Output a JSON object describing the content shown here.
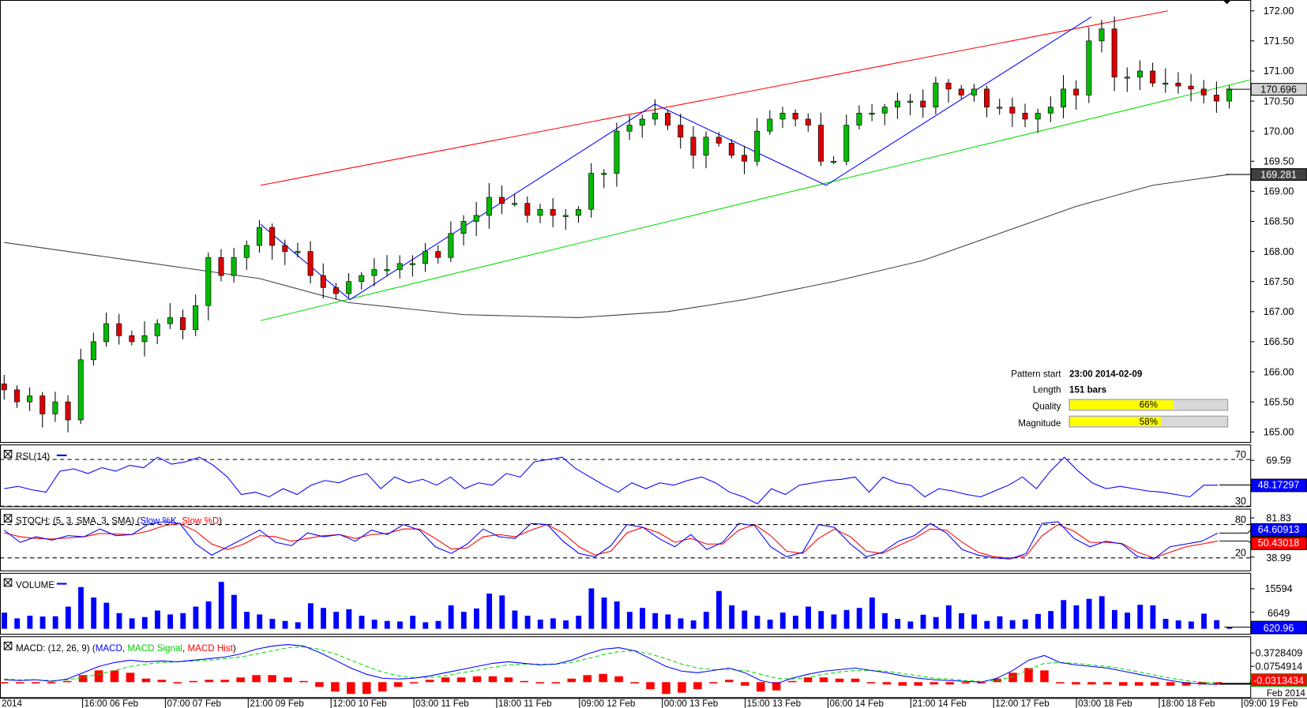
{
  "chart_data": {
    "type": "candlestick",
    "price_axis": {
      "ticks": [
        "172.00",
        "171.50",
        "171.00",
        "170.50",
        "170.00",
        "169.50",
        "169.00",
        "168.50",
        "168.00",
        "167.50",
        "167.00",
        "166.50",
        "166.00",
        "165.50",
        "165.00"
      ],
      "ylim": [
        165.0,
        172.0
      ]
    },
    "current_price_label": "170.696",
    "ma_price_label": "169.281",
    "closes": [
      165.7,
      165.5,
      165.6,
      165.3,
      165.5,
      165.2,
      166.2,
      166.5,
      166.8,
      166.6,
      166.5,
      166.6,
      166.8,
      166.9,
      166.7,
      167.1,
      167.9,
      167.6,
      167.9,
      168.1,
      168.4,
      168.1,
      168.0,
      168.0,
      167.6,
      167.4,
      167.3,
      167.5,
      167.6,
      167.7,
      167.7,
      167.8,
      167.8,
      168.0,
      167.9,
      168.3,
      168.5,
      168.6,
      168.9,
      168.8,
      168.8,
      168.6,
      168.7,
      168.6,
      168.6,
      168.7,
      169.3,
      169.3,
      170.0,
      170.1,
      170.2,
      170.3,
      170.1,
      169.9,
      169.6,
      169.9,
      169.8,
      169.6,
      169.5,
      170.0,
      170.2,
      170.3,
      170.2,
      170.1,
      169.5,
      169.5,
      170.1,
      170.3,
      170.3,
      170.4,
      170.5,
      170.5,
      170.4,
      170.8,
      170.7,
      170.6,
      170.7,
      170.4,
      170.4,
      170.3,
      170.2,
      170.3,
      170.4,
      170.7,
      170.6,
      171.5,
      171.7,
      170.9,
      170.9,
      171.0,
      170.8,
      170.8,
      170.75,
      170.7,
      170.6,
      170.5,
      170.7
    ],
    "moving_average": [
      [
        0,
        168.15
      ],
      [
        10,
        167.85
      ],
      [
        20,
        167.55
      ],
      [
        27,
        167.15
      ],
      [
        36,
        166.95
      ],
      [
        45,
        166.9
      ],
      [
        52,
        167.0
      ],
      [
        58,
        167.2
      ],
      [
        65,
        167.5
      ],
      [
        72,
        167.85
      ],
      [
        78,
        168.3
      ],
      [
        84,
        168.75
      ],
      [
        90,
        169.1
      ],
      [
        96,
        169.28
      ]
    ],
    "channel_upper": [
      [
        20.1,
        169.1
      ],
      [
        91.2,
        172.0
      ]
    ],
    "channel_lower": [
      [
        20.1,
        166.85
      ],
      [
        97.6,
        170.85
      ]
    ],
    "pattern_zigzag": [
      [
        20.1,
        168.45
      ],
      [
        27.1,
        167.2
      ],
      [
        51,
        170.45
      ],
      [
        64.4,
        169.1
      ],
      [
        85.2,
        171.9
      ]
    ],
    "x_tick_labels": [
      "2014",
      "16:00 06 Feb",
      "07:00 07 Feb",
      "21:00 09 Feb",
      "12:00 10 Feb",
      "03:00 11 Feb",
      "18:00 11 Feb",
      "09:00 12 Feb",
      "00:00 13 Feb",
      "15:00 13 Feb",
      "06:00 14 Feb",
      "21:00 14 Feb",
      "12:00 17 Feb",
      "03:00 18 Feb",
      "18:00 18 Feb",
      "09:00 19 Feb",
      "Feb 2014"
    ],
    "pattern_info": {
      "pattern_start_label": "Pattern start",
      "pattern_start_value": "23:00 2014-02-09",
      "length_label": "Length",
      "length_value": "151 bars",
      "quality_label": "Quality",
      "quality_percent": 66,
      "quality_text": "66%",
      "magnitude_label": "Magnitude",
      "magnitude_percent": 58,
      "magnitude_text": "58%"
    },
    "rsi": {
      "title": "RSI (14)",
      "levels": [
        "70",
        "30"
      ],
      "axis_label": "69.59",
      "current_label": "48.17297",
      "values": [
        45,
        47,
        44,
        42,
        60,
        62,
        58,
        63,
        60,
        65,
        63,
        72,
        66,
        68,
        72,
        65,
        55,
        40,
        42,
        38,
        45,
        40,
        48,
        52,
        50,
        55,
        58,
        45,
        55,
        50,
        53,
        48,
        55,
        45,
        50,
        48,
        58,
        55,
        68,
        70,
        72,
        62,
        55,
        48,
        42,
        50,
        45,
        50,
        48,
        52,
        55,
        50,
        42,
        38,
        32,
        45,
        40,
        48,
        50,
        52,
        53,
        55,
        42,
        55,
        50,
        48,
        38,
        45,
        43,
        40,
        38,
        43,
        48,
        55,
        45,
        60,
        72,
        60,
        50,
        45,
        47,
        45,
        43,
        42,
        40,
        38,
        48,
        48
      ]
    },
    "stoch": {
      "title": "STOCH: (5, 3, SMA, 3, SMA)",
      "k_label": "Slow %K",
      "d_label": "Slow %D",
      "levels": [
        "80",
        "20"
      ],
      "axis_labels": [
        "81.83",
        "38.99"
      ],
      "k_current": "64.60913",
      "d_current": "50.43018",
      "k": [
        70,
        48,
        58,
        52,
        60,
        58,
        72,
        60,
        62,
        80,
        85,
        82,
        45,
        25,
        40,
        55,
        70,
        48,
        42,
        65,
        58,
        62,
        50,
        70,
        62,
        80,
        70,
        40,
        28,
        45,
        72,
        58,
        55,
        82,
        80,
        50,
        28,
        22,
        42,
        80,
        75,
        55,
        40,
        62,
        35,
        48,
        82,
        78,
        40,
        22,
        30,
        80,
        75,
        45,
        22,
        30,
        50,
        60,
        82,
        65,
        35,
        25,
        20,
        18,
        28,
        82,
        85,
        55,
        40,
        50,
        45,
        22,
        18,
        40,
        45,
        50,
        64.6
      ],
      "d": [
        65,
        58,
        55,
        54,
        56,
        58,
        64,
        63,
        62,
        68,
        78,
        82,
        68,
        45,
        35,
        45,
        60,
        58,
        50,
        55,
        60,
        62,
        55,
        62,
        64,
        72,
        72,
        55,
        36,
        38,
        58,
        62,
        58,
        70,
        80,
        65,
        40,
        25,
        32,
        65,
        75,
        65,
        48,
        55,
        45,
        45,
        70,
        80,
        60,
        32,
        28,
        55,
        72,
        58,
        32,
        28,
        42,
        55,
        72,
        70,
        48,
        30,
        22,
        20,
        24,
        60,
        80,
        68,
        48,
        48,
        46,
        30,
        20,
        30,
        40,
        45,
        50.4
      ]
    },
    "volume": {
      "title": "VOLUME",
      "axis_labels": [
        "15594",
        "6649"
      ],
      "current_label": "620.96",
      "values": [
        6200,
        4000,
        5000,
        4700,
        4800,
        8500,
        16000,
        12000,
        10000,
        6000,
        4000,
        4500,
        7000,
        5500,
        6000,
        8500,
        10500,
        18000,
        13000,
        6500,
        5500,
        3800,
        3000,
        2500,
        9800,
        8000,
        6500,
        7500,
        5000,
        3500,
        3000,
        2800,
        5000,
        2500,
        3000,
        9000,
        6500,
        7800,
        13500,
        12800,
        7000,
        5000,
        3500,
        4000,
        3200,
        5000,
        15500,
        12000,
        10500,
        6500,
        8000,
        6000,
        5500,
        4000,
        3200,
        6500,
        14500,
        9000,
        7000,
        5000,
        3500,
        6200,
        5000,
        8500,
        6800,
        5500,
        7200,
        8000,
        12000,
        6000,
        3800,
        2800,
        5400,
        4500,
        9000,
        6000,
        5500,
        3000,
        4800,
        3300,
        3600,
        5700,
        6800,
        11000,
        9000,
        11500,
        12500,
        7200,
        6200,
        9200,
        9000,
        3800,
        3200,
        2800,
        5800,
        3300,
        620.96
      ]
    },
    "macd": {
      "title": "MACD: (12, 26, 9)",
      "macd_label": "MACD",
      "signal_label": "MACD Signal",
      "hist_label": "MACD Hist",
      "axis_labels": [
        "0.3728409",
        "0.0754914"
      ],
      "current_label": "-0.0313434",
      "macd": [
        0.03,
        0.02,
        0.03,
        0.01,
        0.04,
        0.12,
        0.2,
        0.25,
        0.28,
        0.26,
        0.27,
        0.26,
        0.28,
        0.3,
        0.32,
        0.36,
        0.42,
        0.46,
        0.48,
        0.46,
        0.38,
        0.28,
        0.18,
        0.1,
        0.05,
        0.04,
        0.05,
        0.08,
        0.12,
        0.16,
        0.2,
        0.24,
        0.26,
        0.24,
        0.22,
        0.23,
        0.28,
        0.36,
        0.42,
        0.44,
        0.4,
        0.3,
        0.2,
        0.14,
        0.12,
        0.15,
        0.18,
        0.12,
        0.02,
        -0.02,
        0.05,
        0.1,
        0.14,
        0.16,
        0.18,
        0.15,
        0.12,
        0.08,
        0.05,
        0.03,
        0.02,
        0.01,
        0.0,
        0.05,
        0.15,
        0.28,
        0.34,
        0.25,
        0.22,
        0.2,
        0.18,
        0.14,
        0.1,
        0.06,
        0.02,
        -0.01,
        -0.02,
        -0.03
      ],
      "signal": [
        0.04,
        0.03,
        0.03,
        0.02,
        0.03,
        0.06,
        0.1,
        0.15,
        0.2,
        0.23,
        0.25,
        0.26,
        0.27,
        0.28,
        0.3,
        0.32,
        0.36,
        0.4,
        0.44,
        0.45,
        0.42,
        0.36,
        0.28,
        0.2,
        0.13,
        0.08,
        0.06,
        0.06,
        0.08,
        0.12,
        0.15,
        0.19,
        0.22,
        0.23,
        0.23,
        0.23,
        0.25,
        0.3,
        0.35,
        0.39,
        0.4,
        0.36,
        0.3,
        0.23,
        0.18,
        0.16,
        0.16,
        0.15,
        0.1,
        0.05,
        0.04,
        0.06,
        0.1,
        0.13,
        0.15,
        0.15,
        0.14,
        0.11,
        0.08,
        0.05,
        0.04,
        0.02,
        0.01,
        0.02,
        0.07,
        0.16,
        0.24,
        0.25,
        0.24,
        0.22,
        0.2,
        0.17,
        0.13,
        0.09,
        0.05,
        0.02,
        0.0,
        -0.01
      ]
    }
  }
}
